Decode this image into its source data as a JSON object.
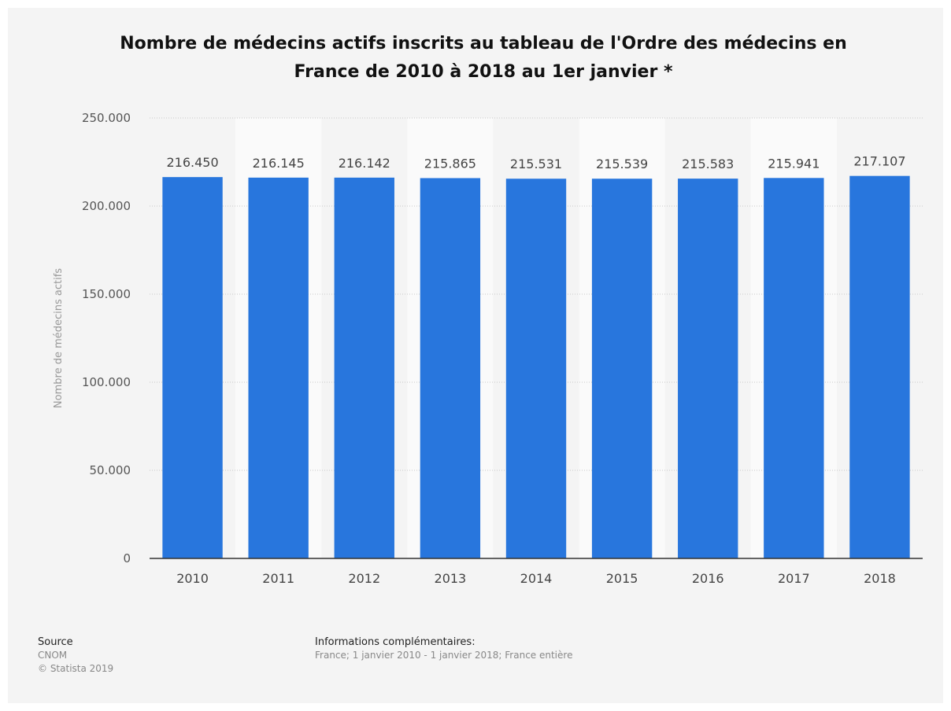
{
  "chart_data": {
    "type": "bar",
    "title": "Nombre de médecins actifs inscrits au tableau de l'Ordre des médecins en France de 2010 à 2018 au 1er janvier *",
    "y_label": "Nombre de médecins actifs",
    "categories": [
      "2010",
      "2011",
      "2012",
      "2013",
      "2014",
      "2015",
      "2016",
      "2017",
      "2018"
    ],
    "values": [
      216450,
      216145,
      216142,
      215865,
      215531,
      215539,
      215583,
      215941,
      217107
    ],
    "value_labels": [
      "216.450",
      "216.145",
      "216.142",
      "215.865",
      "215.531",
      "215.539",
      "215.583",
      "215.941",
      "217.107"
    ],
    "color": "#2876dd",
    "ylim": [
      0,
      250000
    ],
    "yticks": [
      0,
      {
        "value": 50000,
        "label": "50.000"
      },
      {
        "value": 100000,
        "label": "100.000"
      },
      {
        "value": 150000,
        "label": "150.000"
      },
      {
        "value": 200000,
        "label": "200.000"
      },
      {
        "value": 250000,
        "label": "250.000"
      }
    ],
    "grid": true
  },
  "footer": {
    "source_title": "Source",
    "source": "CNOM",
    "copyright": "© Statista 2019",
    "info_title": "Informations complémentaires:",
    "info": "France; 1 janvier 2010 - 1 janvier 2018; France entière"
  }
}
